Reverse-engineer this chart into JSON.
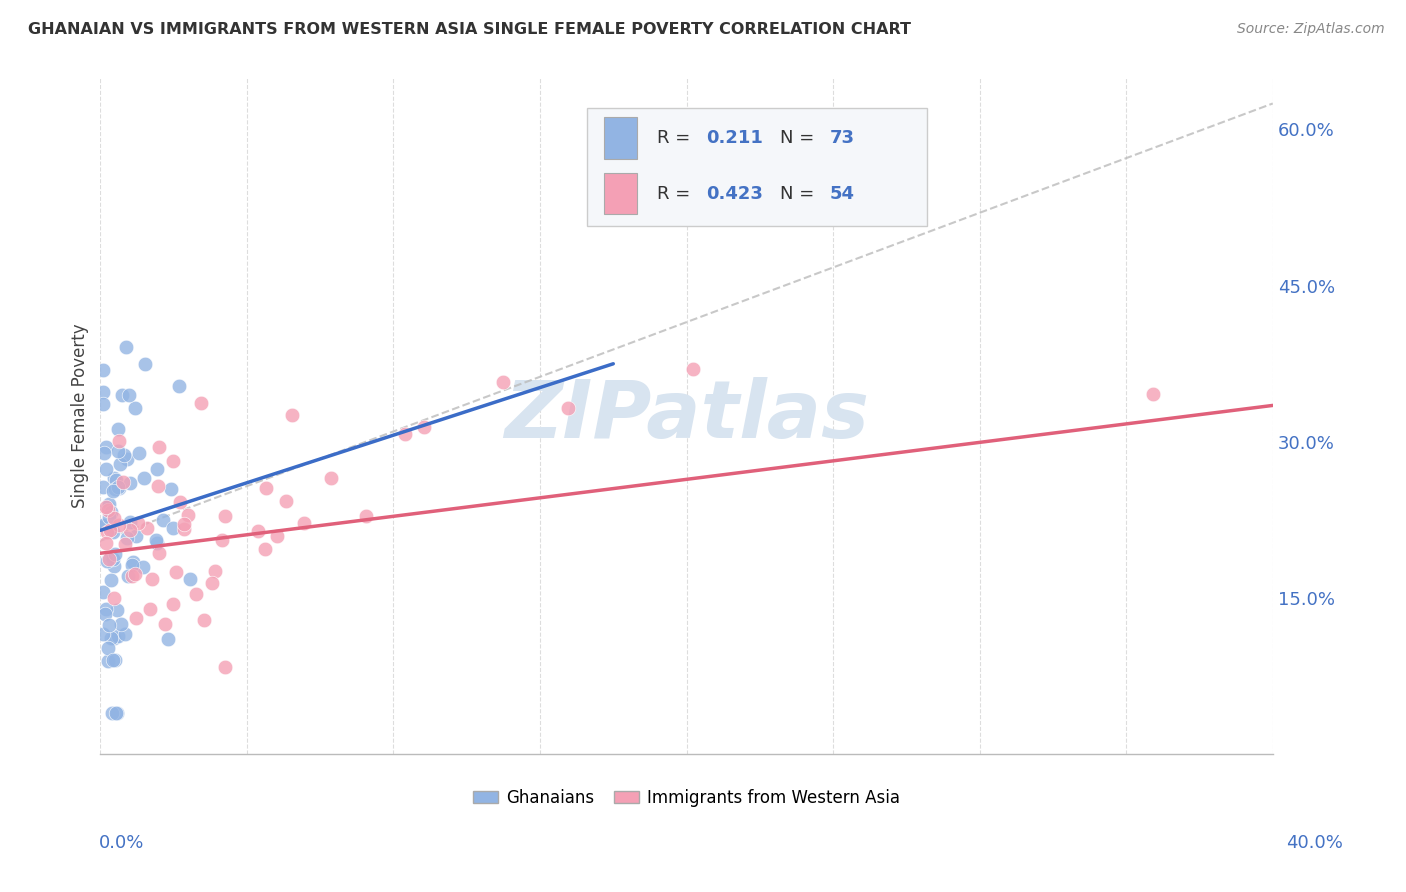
{
  "title": "GHANAIAN VS IMMIGRANTS FROM WESTERN ASIA SINGLE FEMALE POVERTY CORRELATION CHART",
  "source": "Source: ZipAtlas.com",
  "ylabel": "Single Female Poverty",
  "blue_color": "#92B4E3",
  "pink_color": "#F4A0B5",
  "blue_line_color": "#3B6CC7",
  "pink_line_color": "#E0607A",
  "blue_r": 0.211,
  "blue_n": 73,
  "pink_r": 0.423,
  "pink_n": 54,
  "xmin": 0.0,
  "xmax": 0.4,
  "ymin": 0.0,
  "ymax": 0.65,
  "right_yticks": [
    0.0,
    0.15,
    0.3,
    0.45,
    0.6
  ],
  "right_yticklabels": [
    "",
    "15.0%",
    "30.0%",
    "45.0%",
    "60.0%"
  ],
  "blue_line_x": [
    0.0,
    0.175
  ],
  "blue_line_y": [
    0.215,
    0.375
  ],
  "pink_line_x": [
    0.0,
    0.4
  ],
  "pink_line_y": [
    0.193,
    0.335
  ],
  "diag_line_x": [
    0.0,
    0.4
  ],
  "diag_line_y": [
    0.205,
    0.625
  ],
  "watermark": "ZIPatlas",
  "watermark_color": "#D8E4F0",
  "grid_color": "#DDDDDD",
  "title_color": "#333333",
  "source_color": "#888888",
  "tick_label_color": "#4472C4"
}
